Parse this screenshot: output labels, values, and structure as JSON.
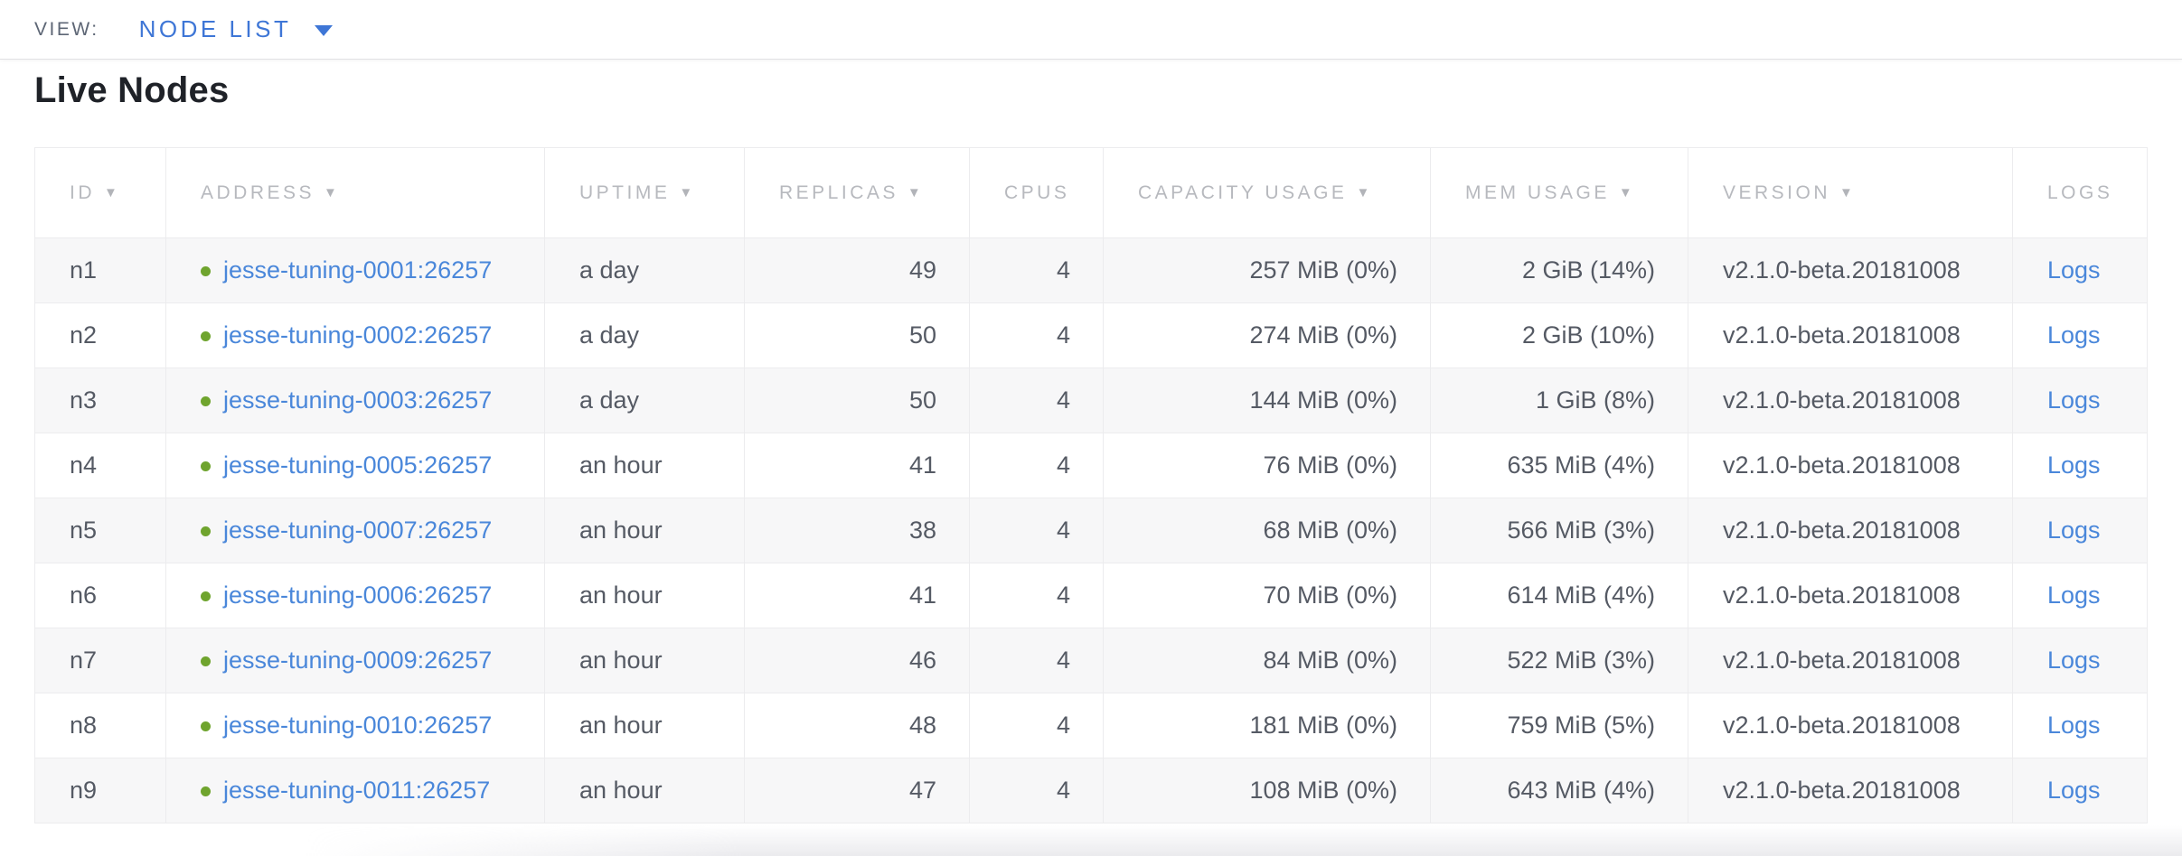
{
  "view_bar": {
    "label": "VIEW:",
    "selected_view": "NODE LIST"
  },
  "page": {
    "title": "Live Nodes"
  },
  "icons": {
    "sort_desc": "▼",
    "dropdown_caret": "▼",
    "live_dot": "●"
  },
  "colors": {
    "accent_blue": "#3e76d6",
    "link_blue": "#4a87da",
    "live_green": "#6fa42e",
    "header_gray": "#b7b9be",
    "text_gray": "#555a64",
    "zebra": "#f7f7f8"
  },
  "table": {
    "columns": [
      {
        "label": "ID",
        "sortable": true
      },
      {
        "label": "ADDRESS",
        "sortable": true
      },
      {
        "label": "UPTIME",
        "sortable": true
      },
      {
        "label": "REPLICAS",
        "sortable": true
      },
      {
        "label": "CPUS",
        "sortable": false
      },
      {
        "label": "CAPACITY USAGE",
        "sortable": true
      },
      {
        "label": "MEM USAGE",
        "sortable": true
      },
      {
        "label": "VERSION",
        "sortable": true
      },
      {
        "label": "LOGS",
        "sortable": false
      }
    ],
    "rows": [
      {
        "id": "n1",
        "address": "jesse-tuning-0001:26257",
        "uptime": "a day",
        "replicas": "49",
        "cpus": "4",
        "capacity_usage": "257 MiB (0%)",
        "mem_usage": "2 GiB (14%)",
        "version": "v2.1.0-beta.20181008",
        "logs_label": "Logs"
      },
      {
        "id": "n2",
        "address": "jesse-tuning-0002:26257",
        "uptime": "a day",
        "replicas": "50",
        "cpus": "4",
        "capacity_usage": "274 MiB (0%)",
        "mem_usage": "2 GiB (10%)",
        "version": "v2.1.0-beta.20181008",
        "logs_label": "Logs"
      },
      {
        "id": "n3",
        "address": "jesse-tuning-0003:26257",
        "uptime": "a day",
        "replicas": "50",
        "cpus": "4",
        "capacity_usage": "144 MiB (0%)",
        "mem_usage": "1 GiB (8%)",
        "version": "v2.1.0-beta.20181008",
        "logs_label": "Logs"
      },
      {
        "id": "n4",
        "address": "jesse-tuning-0005:26257",
        "uptime": "an hour",
        "replicas": "41",
        "cpus": "4",
        "capacity_usage": "76 MiB (0%)",
        "mem_usage": "635 MiB (4%)",
        "version": "v2.1.0-beta.20181008",
        "logs_label": "Logs"
      },
      {
        "id": "n5",
        "address": "jesse-tuning-0007:26257",
        "uptime": "an hour",
        "replicas": "38",
        "cpus": "4",
        "capacity_usage": "68 MiB (0%)",
        "mem_usage": "566 MiB (3%)",
        "version": "v2.1.0-beta.20181008",
        "logs_label": "Logs"
      },
      {
        "id": "n6",
        "address": "jesse-tuning-0006:26257",
        "uptime": "an hour",
        "replicas": "41",
        "cpus": "4",
        "capacity_usage": "70 MiB (0%)",
        "mem_usage": "614 MiB (4%)",
        "version": "v2.1.0-beta.20181008",
        "logs_label": "Logs"
      },
      {
        "id": "n7",
        "address": "jesse-tuning-0009:26257",
        "uptime": "an hour",
        "replicas": "46",
        "cpus": "4",
        "capacity_usage": "84 MiB (0%)",
        "mem_usage": "522 MiB (3%)",
        "version": "v2.1.0-beta.20181008",
        "logs_label": "Logs"
      },
      {
        "id": "n8",
        "address": "jesse-tuning-0010:26257",
        "uptime": "an hour",
        "replicas": "48",
        "cpus": "4",
        "capacity_usage": "181 MiB (0%)",
        "mem_usage": "759 MiB (5%)",
        "version": "v2.1.0-beta.20181008",
        "logs_label": "Logs"
      },
      {
        "id": "n9",
        "address": "jesse-tuning-0011:26257",
        "uptime": "an hour",
        "replicas": "47",
        "cpus": "4",
        "capacity_usage": "108 MiB (0%)",
        "mem_usage": "643 MiB (4%)",
        "version": "v2.1.0-beta.20181008",
        "logs_label": "Logs"
      }
    ]
  }
}
